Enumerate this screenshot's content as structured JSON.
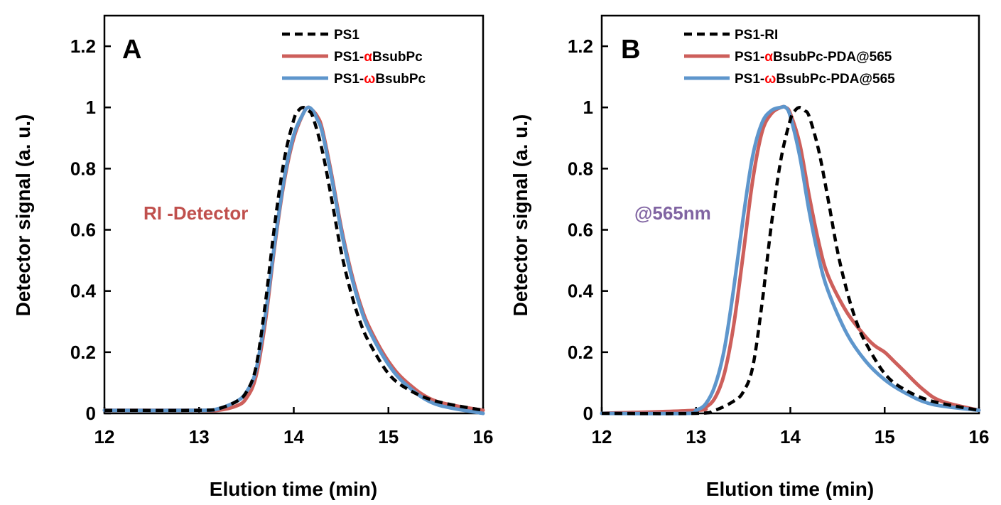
{
  "colors": {
    "ps1": "#000000",
    "alpha": "#cd5f5b",
    "omega": "#5e96cc",
    "greek": "#ff0000",
    "annotation_a": "#c0504d",
    "annotation_b": "#8064a2"
  },
  "chart_data": [
    {
      "type": "line",
      "panel": "A",
      "xlabel": "Elution time (min)",
      "ylabel": "Detector signal (a. u.)",
      "xlim": [
        12,
        16
      ],
      "ylim": [
        0,
        1.3
      ],
      "xticks": [
        "12",
        "13",
        "14",
        "15",
        "16"
      ],
      "yticks": [
        "0",
        "0.2",
        "0.4",
        "0.6",
        "0.8",
        "1",
        "1.2"
      ],
      "annotation": "RI -Detector",
      "legend": [
        {
          "prefix": "PS1",
          "greek": "",
          "suffix": ""
        },
        {
          "prefix": "PS1-",
          "greek": "α",
          "suffix": "BsubPc"
        },
        {
          "prefix": "PS1-",
          "greek": "ω",
          "suffix": "BsubPc"
        }
      ],
      "series": [
        {
          "name": "PS1",
          "style": "dashed",
          "color_key": "ps1",
          "x": [
            12.0,
            13.0,
            13.2,
            13.4,
            13.5,
            13.6,
            13.7,
            13.8,
            13.9,
            14.0,
            14.05,
            14.1,
            14.15,
            14.2,
            14.3,
            14.4,
            14.5,
            14.6,
            14.7,
            14.8,
            15.0,
            15.2,
            15.5,
            16.0
          ],
          "y": [
            0.01,
            0.01,
            0.015,
            0.04,
            0.07,
            0.15,
            0.36,
            0.62,
            0.83,
            0.96,
            0.99,
            1.0,
            0.99,
            0.97,
            0.86,
            0.7,
            0.53,
            0.4,
            0.3,
            0.23,
            0.13,
            0.08,
            0.04,
            0.01
          ]
        },
        {
          "name": "PS1-αBsubPc",
          "style": "solid",
          "color_key": "alpha",
          "x": [
            12.0,
            13.0,
            13.2,
            13.4,
            13.5,
            13.6,
            13.7,
            13.8,
            13.9,
            14.0,
            14.1,
            14.15,
            14.2,
            14.25,
            14.3,
            14.4,
            14.5,
            14.6,
            14.7,
            14.8,
            15.0,
            15.2,
            15.5,
            16.0
          ],
          "y": [
            0.01,
            0.01,
            0.01,
            0.025,
            0.05,
            0.12,
            0.3,
            0.55,
            0.76,
            0.9,
            0.98,
            1.0,
            0.99,
            0.97,
            0.93,
            0.78,
            0.61,
            0.47,
            0.36,
            0.28,
            0.17,
            0.1,
            0.04,
            0.01
          ]
        },
        {
          "name": "PS1-ωBsubPc",
          "style": "solid",
          "color_key": "omega",
          "x": [
            12.0,
            13.0,
            13.2,
            13.4,
            13.5,
            13.6,
            13.7,
            13.8,
            13.9,
            14.0,
            14.1,
            14.15,
            14.2,
            14.25,
            14.3,
            14.4,
            14.5,
            14.6,
            14.7,
            14.8,
            15.0,
            15.2,
            15.5,
            16.0
          ],
          "y": [
            0.01,
            0.01,
            0.015,
            0.04,
            0.07,
            0.14,
            0.32,
            0.56,
            0.77,
            0.91,
            0.98,
            1.0,
            0.99,
            0.96,
            0.92,
            0.77,
            0.6,
            0.46,
            0.35,
            0.27,
            0.16,
            0.09,
            0.03,
            0.0
          ]
        }
      ]
    },
    {
      "type": "line",
      "panel": "B",
      "xlabel": "Elution time (min)",
      "ylabel": "Detector signal (a. u.)",
      "xlim": [
        12,
        16
      ],
      "ylim": [
        0,
        1.3
      ],
      "xticks": [
        "12",
        "13",
        "14",
        "15",
        "16"
      ],
      "yticks": [
        "0",
        "0.2",
        "0.4",
        "0.6",
        "0.8",
        "1",
        "1.2"
      ],
      "annotation": "@565nm",
      "legend": [
        {
          "prefix": "PS1-RI",
          "greek": "",
          "suffix": ""
        },
        {
          "prefix": "PS1-",
          "greek": "α",
          "suffix": "BsubPc-PDA@565"
        },
        {
          "prefix": "PS1-",
          "greek": "ω",
          "suffix": "BsubPc-PDA@565"
        }
      ],
      "series": [
        {
          "name": "PS1-RI",
          "style": "dashed",
          "color_key": "ps1",
          "x": [
            12.0,
            13.0,
            13.2,
            13.4,
            13.5,
            13.6,
            13.7,
            13.8,
            13.9,
            14.0,
            14.05,
            14.1,
            14.15,
            14.2,
            14.3,
            14.4,
            14.5,
            14.6,
            14.7,
            14.8,
            15.0,
            15.2,
            15.5,
            16.0
          ],
          "y": [
            0.0,
            0.0,
            0.01,
            0.04,
            0.07,
            0.15,
            0.36,
            0.62,
            0.83,
            0.96,
            0.99,
            1.0,
            0.99,
            0.97,
            0.86,
            0.7,
            0.53,
            0.4,
            0.3,
            0.23,
            0.13,
            0.08,
            0.04,
            0.01
          ]
        },
        {
          "name": "PS1-αBsubPc-PDA@565",
          "style": "solid",
          "color_key": "alpha",
          "x": [
            12.0,
            13.0,
            13.1,
            13.2,
            13.3,
            13.4,
            13.5,
            13.6,
            13.7,
            13.8,
            13.9,
            13.95,
            14.0,
            14.1,
            14.2,
            14.3,
            14.4,
            14.6,
            14.8,
            14.9,
            15.0,
            15.1,
            15.2,
            15.4,
            15.6,
            16.0
          ],
          "y": [
            0.0,
            0.01,
            0.02,
            0.05,
            0.13,
            0.29,
            0.52,
            0.76,
            0.92,
            0.98,
            1.0,
            1.0,
            0.98,
            0.88,
            0.71,
            0.56,
            0.45,
            0.33,
            0.25,
            0.22,
            0.2,
            0.17,
            0.14,
            0.08,
            0.04,
            0.01
          ]
        },
        {
          "name": "PS1-ωBsubPc-PDA@565",
          "style": "solid",
          "color_key": "omega",
          "x": [
            12.0,
            12.9,
            13.0,
            13.1,
            13.2,
            13.3,
            13.4,
            13.5,
            13.6,
            13.7,
            13.8,
            13.9,
            13.95,
            14.0,
            14.1,
            14.2,
            14.3,
            14.4,
            14.6,
            14.8,
            15.0,
            15.2,
            15.5,
            16.0
          ],
          "y": [
            0.0,
            0.0,
            0.01,
            0.03,
            0.09,
            0.21,
            0.41,
            0.64,
            0.84,
            0.95,
            0.99,
            1.0,
            1.0,
            0.97,
            0.84,
            0.66,
            0.51,
            0.4,
            0.26,
            0.17,
            0.11,
            0.07,
            0.03,
            0.01
          ]
        }
      ]
    }
  ]
}
